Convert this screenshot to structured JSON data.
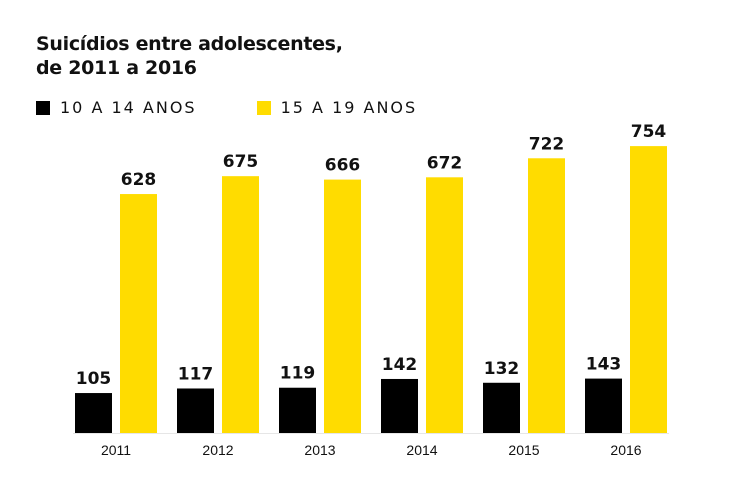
{
  "title_lines": [
    "Suicídios entre adolescentes,",
    "de 2011 a 2016"
  ],
  "legend": [
    {
      "label": "10 A 14 ANOS",
      "color": "#000000"
    },
    {
      "label": "15 A 19 ANOS",
      "color": "#FFDC00"
    }
  ],
  "chart_data": {
    "type": "bar",
    "title": "Suicídios entre adolescentes, de 2011 a 2016",
    "xlabel": "",
    "ylabel": "",
    "categories": [
      "2011",
      "2012",
      "2013",
      "2014",
      "2015",
      "2016"
    ],
    "series": [
      {
        "name": "10 A 14 ANOS",
        "color": "#000000",
        "values": [
          105,
          117,
          119,
          142,
          132,
          143
        ]
      },
      {
        "name": "15 A 19 ANOS",
        "color": "#FFDC00",
        "values": [
          628,
          675,
          666,
          672,
          722,
          754
        ]
      }
    ],
    "grid": false,
    "legend_position": "top-left"
  }
}
